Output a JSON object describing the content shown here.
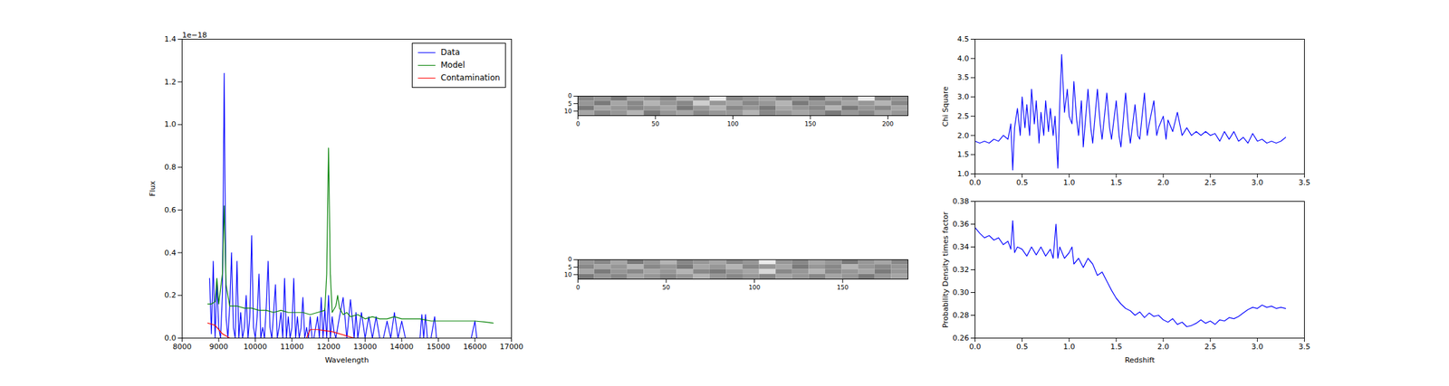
{
  "chart_data": [
    {
      "type": "line",
      "x_label": "Wavelength",
      "y_label": "Flux",
      "y_offset_label": "1e−18",
      "legend": "upper right",
      "xlim": [
        8000,
        17000
      ],
      "xticks": [
        8000,
        9000,
        10000,
        11000,
        12000,
        13000,
        14000,
        15000,
        16000,
        17000
      ],
      "ylim": [
        0,
        1.4
      ],
      "yticks": [
        {
          "value": 0,
          "label": "0.0"
        },
        0.2,
        0.4,
        0.6,
        0.8,
        {
          "value": 1,
          "label": "1.0"
        },
        1.2,
        1.4
      ],
      "series": [
        {
          "name": "Data",
          "color": "#0000ff",
          "x": [
            8750,
            8800,
            8850,
            8900,
            8950,
            9000,
            9050,
            9100,
            9150,
            9200,
            9250,
            9300,
            9350,
            9400,
            9450,
            9500,
            9550,
            9600,
            9650,
            9700,
            9750,
            9800,
            9850,
            9900,
            9950,
            10000,
            10050,
            10100,
            10150,
            10200,
            10250,
            10300,
            10350,
            10400,
            10450,
            10500,
            10550,
            10600,
            10650,
            10700,
            10750,
            10800,
            10850,
            10900,
            10950,
            11000,
            11050,
            11100,
            11150,
            11200,
            11250,
            11300,
            11350,
            11400,
            11450,
            11500,
            11550,
            11600,
            11700,
            11750,
            11800,
            11850,
            11900,
            11950,
            12000,
            12050,
            12100,
            12150,
            12200,
            12300,
            12400,
            12500,
            12600,
            12700,
            12750,
            12800,
            12900,
            13000,
            13100,
            13200,
            13300,
            13400,
            13500,
            13600,
            13700,
            13800,
            13900,
            14000,
            14100,
            14500,
            14550,
            14600,
            14650,
            14700,
            14800,
            14900,
            14950,
            15900,
            16000,
            16050
          ],
          "values": [
            0.28,
            0.02,
            0.36,
            0,
            0.26,
            0.05,
            0,
            0.2,
            1.24,
            0.1,
            0,
            0.15,
            0.4,
            0.05,
            0,
            0.36,
            0,
            0.12,
            0,
            0.05,
            0.2,
            0,
            0.1,
            0.48,
            0.05,
            0,
            0.1,
            0.3,
            0,
            0.05,
            0,
            0.15,
            0.36,
            0.05,
            0,
            0.12,
            0.25,
            0,
            0.05,
            0.12,
            0,
            0.28,
            0,
            0.1,
            0,
            0.05,
            0.28,
            0,
            0.1,
            0,
            0.05,
            0.19,
            0,
            0.05,
            0,
            0.1,
            0,
            0,
            0.1,
            0,
            0.19,
            0,
            0.14,
            0,
            0.2,
            0,
            0.1,
            0.03,
            0,
            0.1,
            0.19,
            0,
            0.18,
            0,
            0.12,
            0,
            0.12,
            0,
            0.1,
            0,
            0.1,
            0,
            0,
            0.08,
            0,
            0.12,
            0,
            0.08,
            0,
            0,
            0.11,
            0,
            0.11,
            0,
            0,
            0.1,
            0,
            0,
            0.08,
            0
          ]
        },
        {
          "name": "Model",
          "color": "#008000",
          "x": [
            8700,
            8800,
            8900,
            8950,
            9000,
            9100,
            9150,
            9200,
            9300,
            9500,
            9700,
            9900,
            10100,
            10300,
            10500,
            10700,
            10900,
            11100,
            11300,
            11500,
            11700,
            11900,
            11950,
            12000,
            12050,
            12100,
            12200,
            12250,
            12300,
            12400,
            12500,
            12600,
            12800,
            13000,
            13200,
            13400,
            13600,
            13800,
            14000,
            14200,
            14500,
            14800,
            15100,
            15400,
            15700,
            16000,
            16300,
            16500
          ],
          "values": [
            0.16,
            0.16,
            0.17,
            0.28,
            0.16,
            0.3,
            0.62,
            0.25,
            0.15,
            0.15,
            0.14,
            0.14,
            0.13,
            0.13,
            0.12,
            0.13,
            0.12,
            0.12,
            0.12,
            0.11,
            0.12,
            0.13,
            0.3,
            0.89,
            0.3,
            0.12,
            0.15,
            0.2,
            0.14,
            0.11,
            0.12,
            0.1,
            0.11,
            0.09,
            0.1,
            0.09,
            0.09,
            0.1,
            0.09,
            0.09,
            0.09,
            0.08,
            0.08,
            0.08,
            0.08,
            0.08,
            0.075,
            0.07
          ]
        },
        {
          "name": "Contamination",
          "color": "#ff0000",
          "x": [
            8700,
            8800,
            8900,
            9000,
            9100,
            9200,
            9300,
            11400,
            11500,
            11700,
            11900,
            12100,
            12300,
            12500,
            12700
          ],
          "values": [
            0.07,
            0.065,
            0.06,
            0.04,
            0.02,
            0.01,
            0,
            0,
            0.04,
            0.04,
            0.035,
            0.03,
            0.02,
            0.01,
            0
          ]
        }
      ]
    },
    {
      "type": "heatmap",
      "xlim": [
        0,
        213
      ],
      "xticks": [
        0,
        50,
        100,
        150,
        200
      ],
      "ylim": [
        13,
        0
      ],
      "yticks": [
        0,
        5,
        10
      ],
      "zlim": [
        0,
        1
      ],
      "cells": [
        [
          0.45,
          0.5,
          0.4,
          0.55,
          0.5,
          0.45,
          0.6,
          0.5,
          0.85,
          0.45,
          0.5,
          0.55,
          0.45,
          0.5,
          0.4,
          0.55,
          0.5,
          0.85,
          0.45,
          0.5
        ],
        [
          0.5,
          0.4,
          0.55,
          0.45,
          0.6,
          0.5,
          0.45,
          0.7,
          0.5,
          0.55,
          0.45,
          0.5,
          0.6,
          0.4,
          0.5,
          0.45,
          0.55,
          0.5,
          0.6,
          0.45
        ],
        [
          0.4,
          0.55,
          0.5,
          0.45,
          0.5,
          0.55,
          0.4,
          0.5,
          0.6,
          0.45,
          0.5,
          0.4,
          0.55,
          0.5,
          0.45,
          0.6,
          0.4,
          0.5,
          0.45,
          0.55
        ],
        [
          0.55,
          0.45,
          0.5,
          0.6,
          0.4,
          0.5,
          0.55,
          0.45,
          0.5,
          0.5,
          0.6,
          0.45,
          0.5,
          0.55,
          0.5,
          0.4,
          0.5,
          0.45,
          0.55,
          0.5
        ]
      ]
    },
    {
      "type": "heatmap",
      "xlim": [
        0,
        187
      ],
      "xticks": [
        0,
        50,
        100,
        150
      ],
      "ylim": [
        13,
        0
      ],
      "yticks": [
        0,
        5,
        10
      ],
      "zlim": [
        0,
        1
      ],
      "cells": [
        [
          0.5,
          0.45,
          0.55,
          0.4,
          0.5,
          0.6,
          0.45,
          0.5,
          0.55,
          0.45,
          0.5,
          0.85,
          0.5,
          0.45,
          0.55,
          0.5,
          0.4,
          0.5,
          0.55,
          0.45
        ],
        [
          0.45,
          0.55,
          0.5,
          0.6,
          0.45,
          0.5,
          0.4,
          0.55,
          0.5,
          0.6,
          0.45,
          0.5,
          0.55,
          0.4,
          0.5,
          0.45,
          0.6,
          0.5,
          0.45,
          0.5
        ],
        [
          0.55,
          0.4,
          0.5,
          0.45,
          0.55,
          0.5,
          0.6,
          0.45,
          0.4,
          0.5,
          0.55,
          0.75,
          0.45,
          0.5,
          0.6,
          0.45,
          0.5,
          0.55,
          0.4,
          0.5
        ],
        [
          0.4,
          0.5,
          0.45,
          0.55,
          0.5,
          0.45,
          0.5,
          0.6,
          0.5,
          0.45,
          0.5,
          0.45,
          0.55,
          0.5,
          0.45,
          0.55,
          0.5,
          0.4,
          0.5,
          0.55
        ]
      ]
    },
    {
      "type": "line",
      "y_label": "Chi Square",
      "xlim": [
        0,
        3.5
      ],
      "xticks": [
        {
          "value": 0,
          "label": "0.0"
        },
        0.5,
        {
          "value": 1,
          "label": "1.0"
        },
        1.5,
        {
          "value": 2,
          "label": "2.0"
        },
        2.5,
        {
          "value": 3,
          "label": "3.0"
        },
        3.5
      ],
      "ylim": [
        1,
        4.5
      ],
      "yticks": [
        {
          "value": 1,
          "label": "1.0"
        },
        1.5,
        {
          "value": 2,
          "label": "2.0"
        },
        2.5,
        {
          "value": 3,
          "label": "3.0"
        },
        3.5,
        {
          "value": 4,
          "label": "4.0"
        },
        4.5
      ],
      "color": "#0000ff",
      "x": [
        0,
        0.05,
        0.1,
        0.15,
        0.2,
        0.25,
        0.3,
        0.35,
        0.38,
        0.4,
        0.42,
        0.45,
        0.48,
        0.5,
        0.53,
        0.55,
        0.58,
        0.6,
        0.63,
        0.65,
        0.68,
        0.7,
        0.73,
        0.75,
        0.78,
        0.8,
        0.83,
        0.85,
        0.88,
        0.9,
        0.92,
        0.95,
        0.98,
        1.0,
        1.03,
        1.05,
        1.08,
        1.1,
        1.13,
        1.15,
        1.2,
        1.23,
        1.25,
        1.3,
        1.33,
        1.35,
        1.4,
        1.43,
        1.45,
        1.5,
        1.53,
        1.55,
        1.6,
        1.63,
        1.65,
        1.7,
        1.73,
        1.75,
        1.8,
        1.83,
        1.85,
        1.9,
        1.93,
        1.95,
        2.0,
        2.03,
        2.05,
        2.1,
        2.15,
        2.2,
        2.25,
        2.3,
        2.35,
        2.4,
        2.45,
        2.5,
        2.55,
        2.6,
        2.65,
        2.7,
        2.75,
        2.8,
        2.85,
        2.9,
        2.95,
        3.0,
        3.05,
        3.1,
        3.15,
        3.2,
        3.25,
        3.3
      ],
      "values": [
        1.85,
        1.8,
        1.85,
        1.8,
        1.9,
        1.85,
        2.0,
        1.9,
        2.3,
        1.1,
        2.2,
        2.7,
        2.0,
        3.0,
        2.2,
        2.8,
        2.0,
        3.2,
        2.3,
        2.9,
        1.8,
        2.6,
        2.0,
        2.9,
        2.1,
        2.7,
        2.0,
        2.5,
        1.15,
        2.8,
        4.1,
        2.6,
        3.2,
        2.5,
        2.3,
        3.4,
        2.4,
        2.0,
        2.9,
        1.7,
        3.2,
        2.2,
        1.8,
        3.2,
        2.3,
        1.9,
        3.1,
        2.2,
        1.9,
        2.9,
        2.0,
        1.7,
        3.1,
        2.2,
        1.8,
        2.8,
        2.0,
        1.9,
        3.1,
        2.0,
        2.3,
        2.9,
        2.0,
        2.2,
        2.5,
        1.9,
        2.4,
        2.1,
        2.6,
        2.0,
        2.2,
        2.0,
        2.1,
        2.0,
        2.1,
        2.0,
        2.05,
        1.85,
        2.1,
        1.9,
        2.1,
        1.85,
        1.95,
        1.8,
        2.05,
        1.85,
        1.9,
        1.8,
        1.85,
        1.8,
        1.85,
        1.95
      ]
    },
    {
      "type": "line",
      "x_label": "Redshift",
      "y_label": "Probability Density times factor",
      "xlim": [
        0,
        3.5
      ],
      "xticks": [
        {
          "value": 0,
          "label": "0.0"
        },
        0.5,
        {
          "value": 1,
          "label": "1.0"
        },
        1.5,
        {
          "value": 2,
          "label": "2.0"
        },
        2.5,
        {
          "value": 3,
          "label": "3.0"
        },
        3.5
      ],
      "ylim": [
        0.26,
        0.38
      ],
      "yticks": [
        0.26,
        0.28,
        {
          "value": 0.3,
          "label": "0.30"
        },
        0.32,
        0.34,
        0.36,
        0.38
      ],
      "color": "#0000ff",
      "x": [
        0,
        0.05,
        0.1,
        0.15,
        0.2,
        0.25,
        0.3,
        0.35,
        0.38,
        0.4,
        0.42,
        0.45,
        0.5,
        0.55,
        0.6,
        0.65,
        0.7,
        0.75,
        0.8,
        0.83,
        0.86,
        0.88,
        0.9,
        0.95,
        1.0,
        1.03,
        1.05,
        1.1,
        1.15,
        1.2,
        1.25,
        1.3,
        1.35,
        1.4,
        1.45,
        1.5,
        1.55,
        1.6,
        1.65,
        1.7,
        1.75,
        1.8,
        1.85,
        1.9,
        1.95,
        2.0,
        2.05,
        2.1,
        2.15,
        2.2,
        2.25,
        2.3,
        2.35,
        2.4,
        2.45,
        2.5,
        2.55,
        2.6,
        2.65,
        2.7,
        2.75,
        2.8,
        2.85,
        2.9,
        2.95,
        3.0,
        3.05,
        3.1,
        3.15,
        3.2,
        3.25,
        3.3
      ],
      "values": [
        0.357,
        0.352,
        0.348,
        0.35,
        0.346,
        0.348,
        0.342,
        0.345,
        0.338,
        0.363,
        0.335,
        0.34,
        0.338,
        0.332,
        0.34,
        0.333,
        0.34,
        0.332,
        0.338,
        0.33,
        0.36,
        0.33,
        0.34,
        0.33,
        0.335,
        0.34,
        0.325,
        0.33,
        0.322,
        0.33,
        0.325,
        0.315,
        0.318,
        0.31,
        0.302,
        0.295,
        0.29,
        0.286,
        0.284,
        0.28,
        0.283,
        0.278,
        0.282,
        0.279,
        0.28,
        0.276,
        0.274,
        0.277,
        0.272,
        0.274,
        0.27,
        0.271,
        0.273,
        0.276,
        0.273,
        0.275,
        0.272,
        0.276,
        0.275,
        0.278,
        0.277,
        0.279,
        0.282,
        0.285,
        0.287,
        0.286,
        0.289,
        0.287,
        0.288,
        0.286,
        0.287,
        0.286
      ]
    }
  ]
}
